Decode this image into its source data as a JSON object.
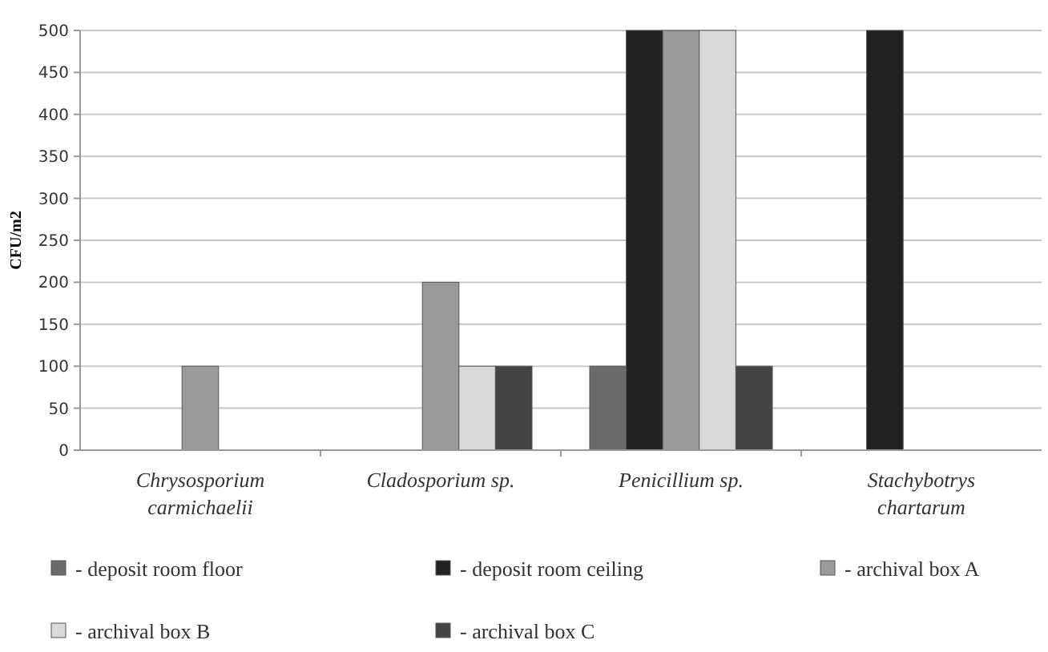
{
  "chart_data": {
    "type": "bar",
    "ylabel": "CFU/m2",
    "categories": [
      "Chrysosporium carmichaelii",
      "Cladosporium sp.",
      "Penicillium sp.",
      "Stachybotrys chartarum"
    ],
    "series": [
      {
        "name": "- deposit room floor",
        "color": "#6b6b6b",
        "values": [
          null,
          null,
          100,
          null
        ]
      },
      {
        "name": "- deposit room  ceiling",
        "color": "#222222",
        "values": [
          null,
          null,
          500,
          500
        ]
      },
      {
        "name": "- archival box A",
        "color": "#9a9a9a",
        "values": [
          100,
          200,
          500,
          null
        ]
      },
      {
        "name": "- archival box B",
        "color": "#d9d9d9",
        "values": [
          null,
          100,
          500,
          null
        ]
      },
      {
        "name": "- archival box C",
        "color": "#454545",
        "values": [
          null,
          100,
          100,
          null
        ]
      }
    ],
    "ylim": [
      0,
      500
    ],
    "yticks": [
      0,
      50,
      100,
      150,
      200,
      250,
      300,
      350,
      400,
      450,
      500
    ],
    "grid": "y",
    "legend": "bottom"
  }
}
